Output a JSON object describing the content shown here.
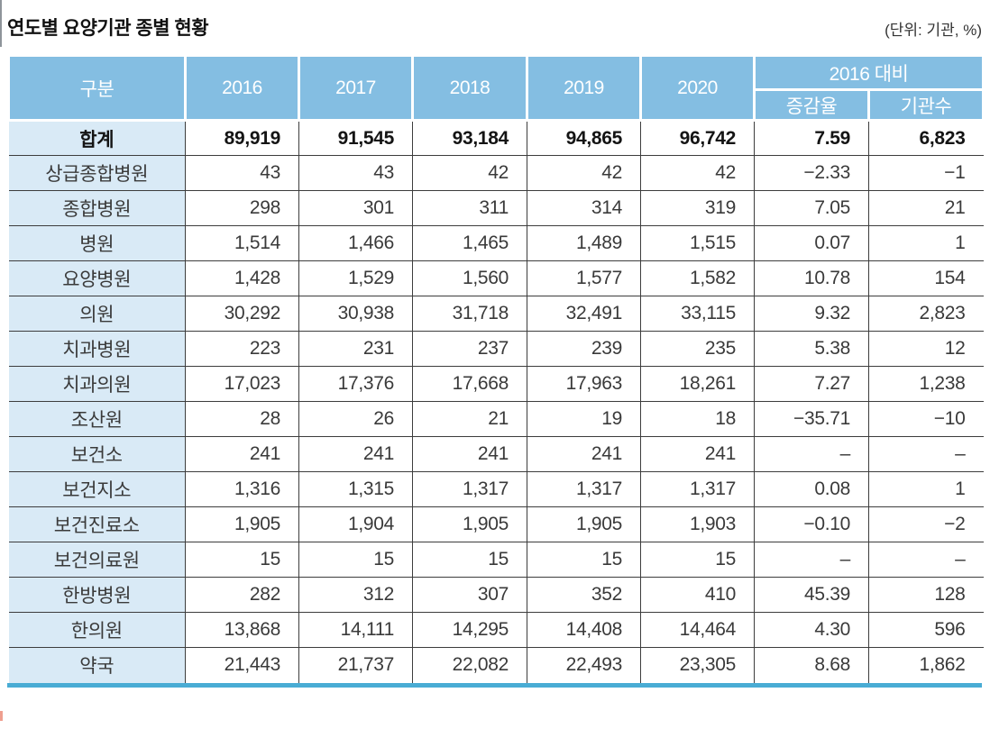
{
  "title": "연도별 요양기관 종별 현황",
  "unit_label": "(단위: 기관, %)",
  "colors": {
    "header_blue": "#84bee2",
    "label_blue": "#d9eaf6",
    "bottom_bar_blue": "#49acd4",
    "grid_line": "#3d3d3d"
  },
  "table": {
    "columns": [
      "구분",
      "2016",
      "2017",
      "2018",
      "2019",
      "2020"
    ],
    "col_group_header": "2016 대비",
    "sub_columns": [
      "증감율",
      "기관수"
    ],
    "rows": [
      {
        "label": "합계",
        "bold": true,
        "values": [
          "89,919",
          "91,545",
          "93,184",
          "94,865",
          "96,742",
          "7.59",
          "6,823"
        ]
      },
      {
        "label": "상급종합병원",
        "values": [
          "43",
          "43",
          "42",
          "42",
          "42",
          "−2.33",
          "−1"
        ]
      },
      {
        "label": "종합병원",
        "values": [
          "298",
          "301",
          "311",
          "314",
          "319",
          "7.05",
          "21"
        ]
      },
      {
        "label": "병원",
        "values": [
          "1,514",
          "1,466",
          "1,465",
          "1,489",
          "1,515",
          "0.07",
          "1"
        ]
      },
      {
        "label": "요양병원",
        "values": [
          "1,428",
          "1,529",
          "1,560",
          "1,577",
          "1,582",
          "10.78",
          "154"
        ]
      },
      {
        "label": "의원",
        "values": [
          "30,292",
          "30,938",
          "31,718",
          "32,491",
          "33,115",
          "9.32",
          "2,823"
        ]
      },
      {
        "label": "치과병원",
        "values": [
          "223",
          "231",
          "237",
          "239",
          "235",
          "5.38",
          "12"
        ]
      },
      {
        "label": "치과의원",
        "values": [
          "17,023",
          "17,376",
          "17,668",
          "17,963",
          "18,261",
          "7.27",
          "1,238"
        ]
      },
      {
        "label": "조산원",
        "values": [
          "28",
          "26",
          "21",
          "19",
          "18",
          "−35.71",
          "−10"
        ]
      },
      {
        "label": "보건소",
        "values": [
          "241",
          "241",
          "241",
          "241",
          "241",
          "–",
          "–"
        ]
      },
      {
        "label": "보건지소",
        "values": [
          "1,316",
          "1,315",
          "1,317",
          "1,317",
          "1,317",
          "0.08",
          "1"
        ]
      },
      {
        "label": "보건진료소",
        "values": [
          "1,905",
          "1,904",
          "1,905",
          "1,905",
          "1,903",
          "−0.10",
          "−2"
        ]
      },
      {
        "label": "보건의료원",
        "values": [
          "15",
          "15",
          "15",
          "15",
          "15",
          "–",
          "–"
        ]
      },
      {
        "label": "한방병원",
        "values": [
          "282",
          "312",
          "307",
          "352",
          "410",
          "45.39",
          "128"
        ]
      },
      {
        "label": "한의원",
        "values": [
          "13,868",
          "14,111",
          "14,295",
          "14,408",
          "14,464",
          "4.30",
          "596"
        ]
      },
      {
        "label": "약국",
        "values": [
          "21,443",
          "21,737",
          "22,082",
          "22,493",
          "23,305",
          "8.68",
          "1,862"
        ]
      }
    ]
  }
}
